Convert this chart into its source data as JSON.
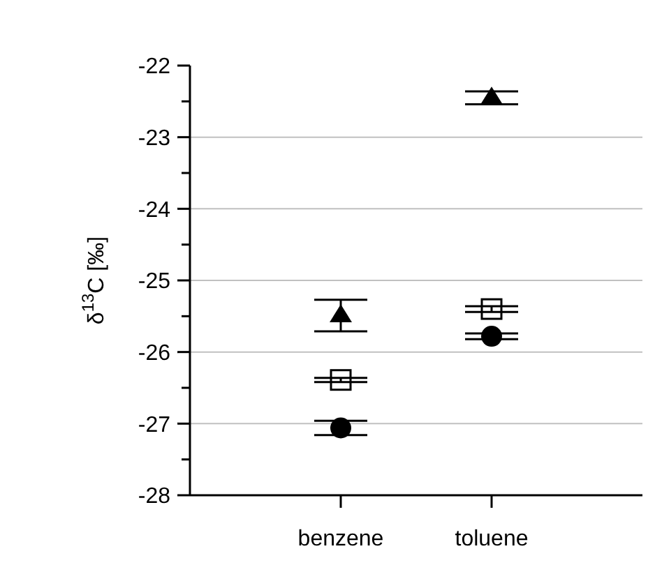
{
  "chart_data": {
    "type": "scatter",
    "ylabel": "δ$^{13}$C [‰]",
    "categories": [
      "benzene",
      "toluene"
    ],
    "ylim": [
      -28,
      -22
    ],
    "yticks": [
      -28,
      {
        "value": -27.5,
        "label": null
      },
      -27,
      {
        "value": -26.5,
        "label": null
      },
      -26,
      {
        "value": -25.5,
        "label": null
      },
      -25,
      {
        "value": -24.5,
        "label": null
      },
      -24,
      {
        "value": -23.5,
        "label": null
      },
      -23,
      {
        "value": -22.5,
        "label": null
      },
      -22
    ],
    "grid": "y",
    "series": [
      {
        "color": "#000000",
        "marker": "triangle",
        "values": [
          -25.49,
          -22.45
        ],
        "errors": [
          0.22,
          0.09
        ]
      },
      {
        "color": "#000000",
        "marker": "square",
        "values": [
          -26.39,
          -25.4
        ],
        "errors": [
          0.03,
          0.04
        ]
      },
      {
        "color": "#000000",
        "marker": "circle",
        "values": [
          -27.06,
          -25.78
        ],
        "errors": [
          0.1,
          0.04
        ]
      }
    ]
  }
}
